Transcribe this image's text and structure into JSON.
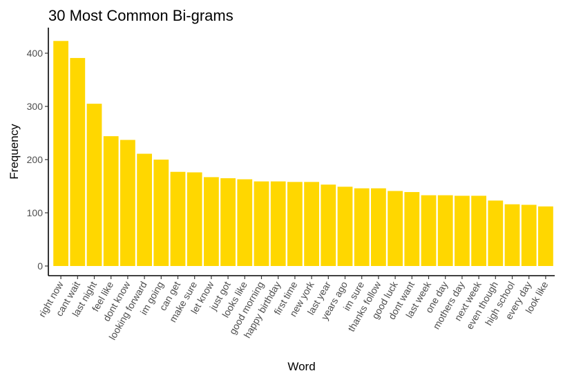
{
  "chart_data": {
    "type": "bar",
    "title": "30 Most Common Bi-grams",
    "xlabel": "Word",
    "ylabel": "Frequency",
    "categories": [
      "right now",
      "cant wait",
      "last night",
      "feel like",
      "dont know",
      "looking forward",
      "im going",
      "can get",
      "make sure",
      "let know",
      "just got",
      "looks like",
      "good morning",
      "happy birthday",
      "first time",
      "new york",
      "last year",
      "years ago",
      "im sure",
      "thanks follow",
      "good luck",
      "dont want",
      "last week",
      "one day",
      "mothers day",
      "next week",
      "even though",
      "high school",
      "every day",
      "look like"
    ],
    "values": [
      423,
      391,
      305,
      244,
      237,
      211,
      200,
      177,
      176,
      167,
      165,
      163,
      159,
      159,
      158,
      158,
      153,
      149,
      146,
      146,
      141,
      139,
      133,
      133,
      132,
      132,
      123,
      116,
      115,
      112
    ],
    "ylim": [
      0,
      440
    ],
    "yticks": [
      0,
      100,
      200,
      300,
      400
    ],
    "bar_color": "#FFD700",
    "grid": false,
    "legend": "none"
  }
}
